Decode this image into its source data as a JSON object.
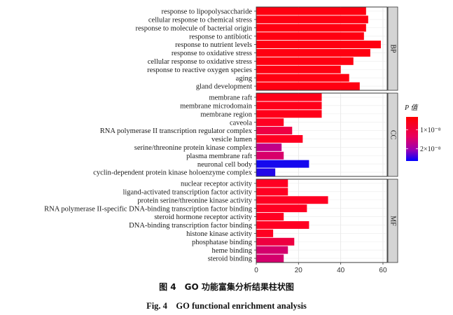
{
  "caption": {
    "cn": "图 4　GO 功能富集分析结果柱状图",
    "en": "Fig. 4　GO functional enrichment analysis"
  },
  "chart_data": {
    "type": "bar",
    "orientation": "horizontal",
    "facet_by": "category",
    "xlim": [
      0,
      62
    ],
    "xticks": [
      0,
      20,
      40,
      60
    ],
    "grid": true,
    "legend": {
      "title": "P 值",
      "position": "right",
      "ticks": [
        "1×10⁻⁸",
        "2×10⁻⁸"
      ],
      "gradient": [
        "#ff0000",
        "#0000ff"
      ]
    },
    "facets": [
      {
        "name": "BP",
        "categories": [
          "response to lipopolysaccharide",
          "cellular response to chemical stress",
          "response to molecule of bacterial origin",
          "response to antibiotic",
          "response to nutrient levels",
          "response to oxidative stress",
          "cellular response to oxidative stress",
          "response to reactive oxygen species",
          "aging",
          "gland development"
        ],
        "values": [
          52,
          53,
          52,
          51,
          59,
          54,
          46,
          40,
          44,
          49
        ],
        "colors": [
          "#ff0011",
          "#ff0011",
          "#ff0011",
          "#ff0011",
          "#ff0011",
          "#ff0011",
          "#ff0011",
          "#ff0011",
          "#ff0011",
          "#ff0011"
        ]
      },
      {
        "name": "CC",
        "categories": [
          "membrane raft",
          "membrane microdomain",
          "membrane region",
          "caveola",
          "RNA polymerase II transcription regulator complex",
          "vesicle lumen",
          "serine/threonine protein kinase complex",
          "plasma membrane raft",
          "neuronal cell body",
          "cyclin-dependent protein kinase holoenzyme complex"
        ],
        "values": [
          31,
          31,
          31,
          13,
          17,
          22,
          12,
          13,
          25,
          9
        ],
        "colors": [
          "#ff0019",
          "#ff0019",
          "#ff0019",
          "#ff0022",
          "#ee0044",
          "#ff0022",
          "#c10088",
          "#d8006a",
          "#1508ee",
          "#2206e8"
        ]
      },
      {
        "name": "MF",
        "categories": [
          "nuclear receptor activity",
          "ligand-activated transcription factor activity",
          "protein serine/threonine kinase activity",
          "RNA polymerase II-specific DNA-binding transcription factor binding",
          "steroid hormone receptor activity",
          "DNA-binding transcription factor binding",
          "histone kinase activity",
          "phosphatase binding",
          "heme binding",
          "steroid binding"
        ],
        "values": [
          15,
          15,
          34,
          24,
          13,
          25,
          8,
          18,
          15,
          13
        ],
        "colors": [
          "#ff0022",
          "#ff0022",
          "#ff0022",
          "#ff0022",
          "#ff0022",
          "#ff0022",
          "#ff0022",
          "#ee0040",
          "#d4006c",
          "#d4006c"
        ]
      }
    ]
  }
}
